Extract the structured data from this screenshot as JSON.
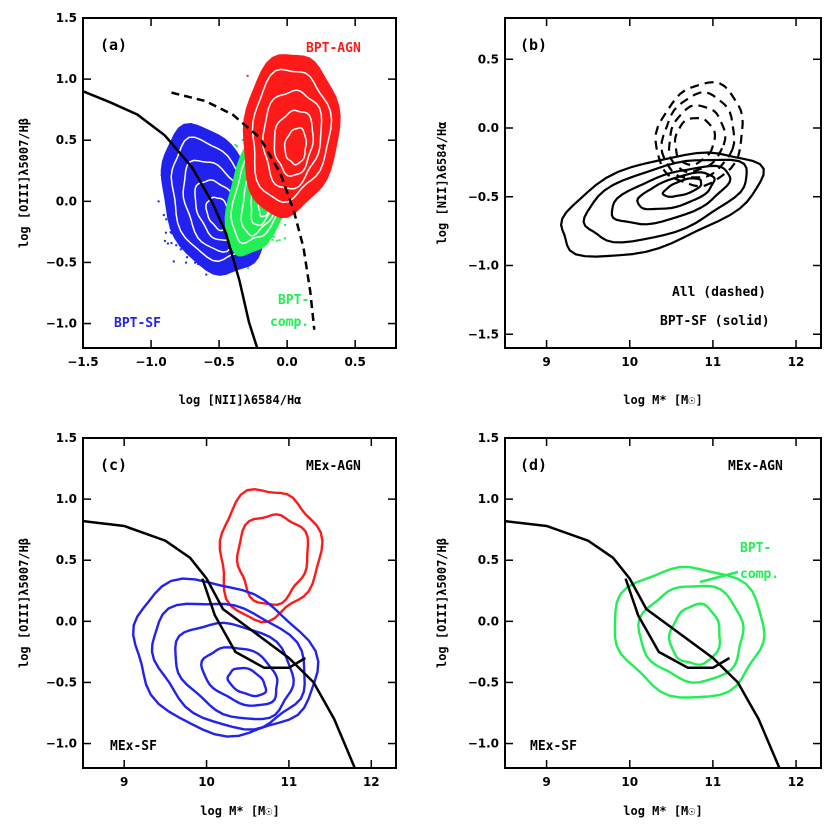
{
  "colors": {
    "black": "#000000",
    "red": "#ff1a1a",
    "blue": "#2222ee",
    "green": "#22ee55",
    "white": "#ffffff"
  },
  "chart_data": [
    {
      "id": "a",
      "type": "scatter",
      "panel_label": "(a)",
      "xlabel": "log [NII]λ6584/Hα",
      "ylabel": "log [OIII]λ5007/Hβ",
      "xlim": [
        -1.5,
        0.8
      ],
      "ylim": [
        -1.2,
        1.5
      ],
      "xticks": [
        -1.5,
        -1.0,
        -0.5,
        0.0,
        0.5
      ],
      "xtick_labels": [
        "−1.5",
        "−1.0",
        "−0.5",
        "0.0",
        "0.5"
      ],
      "yticks": [
        -1.0,
        -0.5,
        0.0,
        0.5,
        1.0,
        1.5
      ],
      "ytick_labels": [
        "−1.0",
        "−0.5",
        "0.0",
        "0.5",
        "1.0",
        "1.5"
      ],
      "annotations": [
        {
          "text": "BPT-AGN",
          "color": "red"
        },
        {
          "text": "BPT-SF",
          "color": "blue"
        },
        {
          "text": "BPT-",
          "color": "green"
        },
        {
          "text": "comp.",
          "color": "green"
        }
      ],
      "series": [
        {
          "color": "red",
          "kind": "point cloud + filled contours",
          "center": [
            0.0,
            0.55
          ]
        },
        {
          "color": "green",
          "kind": "point cloud + filled contours",
          "center": [
            -0.25,
            0.0
          ]
        },
        {
          "color": "blue",
          "kind": "point cloud + filled contours",
          "center": [
            -0.5,
            -0.1
          ]
        }
      ],
      "lines": [
        {
          "style": "solid",
          "color": "black",
          "x": [
            -1.5,
            -1.3,
            -1.1,
            -0.9,
            -0.7,
            -0.55,
            -0.45,
            -0.35,
            -0.28,
            -0.22
          ],
          "y": [
            0.9,
            0.81,
            0.71,
            0.54,
            0.28,
            -0.01,
            -0.26,
            -0.65,
            -0.99,
            -1.2
          ]
        },
        {
          "style": "dashed",
          "color": "black",
          "x": [
            -0.85,
            -0.6,
            -0.4,
            -0.2,
            -0.05,
            0.05,
            0.12,
            0.17,
            0.2
          ],
          "y": [
            0.89,
            0.82,
            0.71,
            0.52,
            0.23,
            -0.08,
            -0.38,
            -0.74,
            -1.05
          ]
        }
      ]
    },
    {
      "id": "b",
      "type": "line",
      "panel_label": "(b)",
      "xlabel": "log M* [M☉]",
      "ylabel": "log [NII]λ6584/Hα",
      "xlim": [
        8.5,
        12.3
      ],
      "ylim": [
        -1.6,
        0.8
      ],
      "xticks": [
        9,
        10,
        11,
        12
      ],
      "xtick_labels": [
        "9",
        "10",
        "11",
        "12"
      ],
      "yticks": [
        -1.5,
        -1.0,
        -0.5,
        0.0,
        0.5
      ],
      "ytick_labels": [
        "−1.5",
        "−1.0",
        "−0.5",
        "0.0",
        "0.5"
      ],
      "annotations": [
        {
          "text": "All (dashed)",
          "color": "black"
        },
        {
          "text": "BPT-SF (solid)",
          "color": "black"
        }
      ],
      "series": [
        {
          "label": "All (dashed)",
          "style": "dashed",
          "center": [
            10.8,
            0.0
          ]
        },
        {
          "label": "BPT-SF (solid)",
          "style": "solid",
          "center": [
            10.4,
            -0.5
          ]
        }
      ]
    },
    {
      "id": "c",
      "type": "line",
      "panel_label": "(c)",
      "xlabel": "log M* [M☉]",
      "ylabel": "log [OIII]λ5007/Hβ",
      "xlim": [
        8.5,
        12.3
      ],
      "ylim": [
        -1.2,
        1.5
      ],
      "xticks": [
        9,
        10,
        11,
        12
      ],
      "xtick_labels": [
        "9",
        "10",
        "11",
        "12"
      ],
      "yticks": [
        -1.0,
        -0.5,
        0.0,
        0.5,
        1.0,
        1.5
      ],
      "ytick_labels": [
        "−1.0",
        "−0.5",
        "0.0",
        "0.5",
        "1.0",
        "1.5"
      ],
      "annotations": [
        {
          "text": "MEx-AGN",
          "color": "black"
        },
        {
          "text": "MEx-SF",
          "color": "black"
        }
      ],
      "series": [
        {
          "color": "red",
          "kind": "contours",
          "center": [
            10.7,
            0.55
          ]
        },
        {
          "color": "blue",
          "kind": "contours",
          "center": [
            10.3,
            -0.3
          ]
        }
      ],
      "lines": [
        {
          "style": "solid",
          "color": "black",
          "x": [
            8.5,
            9.0,
            9.5,
            9.8,
            10.0,
            10.2,
            10.5,
            11.0,
            11.3,
            11.55,
            11.8
          ],
          "y": [
            0.82,
            0.78,
            0.66,
            0.52,
            0.35,
            0.1,
            -0.05,
            -0.3,
            -0.5,
            -0.8,
            -1.2
          ]
        },
        {
          "style": "solid",
          "color": "black",
          "x": [
            9.95,
            10.1,
            10.35,
            10.7,
            11.0,
            11.2
          ],
          "y": [
            0.35,
            0.05,
            -0.25,
            -0.38,
            -0.38,
            -0.3
          ]
        }
      ]
    },
    {
      "id": "d",
      "type": "line",
      "panel_label": "(d)",
      "xlabel": "log M* [M☉]",
      "ylabel": "log [OIII]λ5007/Hβ",
      "xlim": [
        8.5,
        12.3
      ],
      "ylim": [
        -1.2,
        1.5
      ],
      "xticks": [
        9,
        10,
        11,
        12
      ],
      "xtick_labels": [
        "9",
        "10",
        "11",
        "12"
      ],
      "yticks": [
        -1.0,
        -0.5,
        0.0,
        0.5,
        1.0,
        1.5
      ],
      "ytick_labels": [
        "−1.0",
        "−0.5",
        "0.0",
        "0.5",
        "1.0",
        "1.5"
      ],
      "annotations": [
        {
          "text": "MEx-AGN",
          "color": "black"
        },
        {
          "text": "MEx-SF",
          "color": "black"
        },
        {
          "text": "BPT-",
          "color": "green"
        },
        {
          "text": "comp.",
          "color": "green"
        }
      ],
      "series": [
        {
          "color": "green",
          "kind": "contours",
          "center": [
            10.75,
            -0.05
          ]
        }
      ],
      "lines": [
        {
          "style": "solid",
          "color": "black",
          "x": [
            8.5,
            9.0,
            9.5,
            9.8,
            10.0,
            10.2,
            10.5,
            11.0,
            11.3,
            11.55,
            11.8
          ],
          "y": [
            0.82,
            0.78,
            0.66,
            0.52,
            0.35,
            0.1,
            -0.05,
            -0.3,
            -0.5,
            -0.8,
            -1.2
          ]
        },
        {
          "style": "solid",
          "color": "black",
          "x": [
            9.95,
            10.1,
            10.35,
            10.7,
            11.0,
            11.2
          ],
          "y": [
            0.35,
            0.05,
            -0.25,
            -0.38,
            -0.38,
            -0.3
          ]
        }
      ]
    }
  ]
}
